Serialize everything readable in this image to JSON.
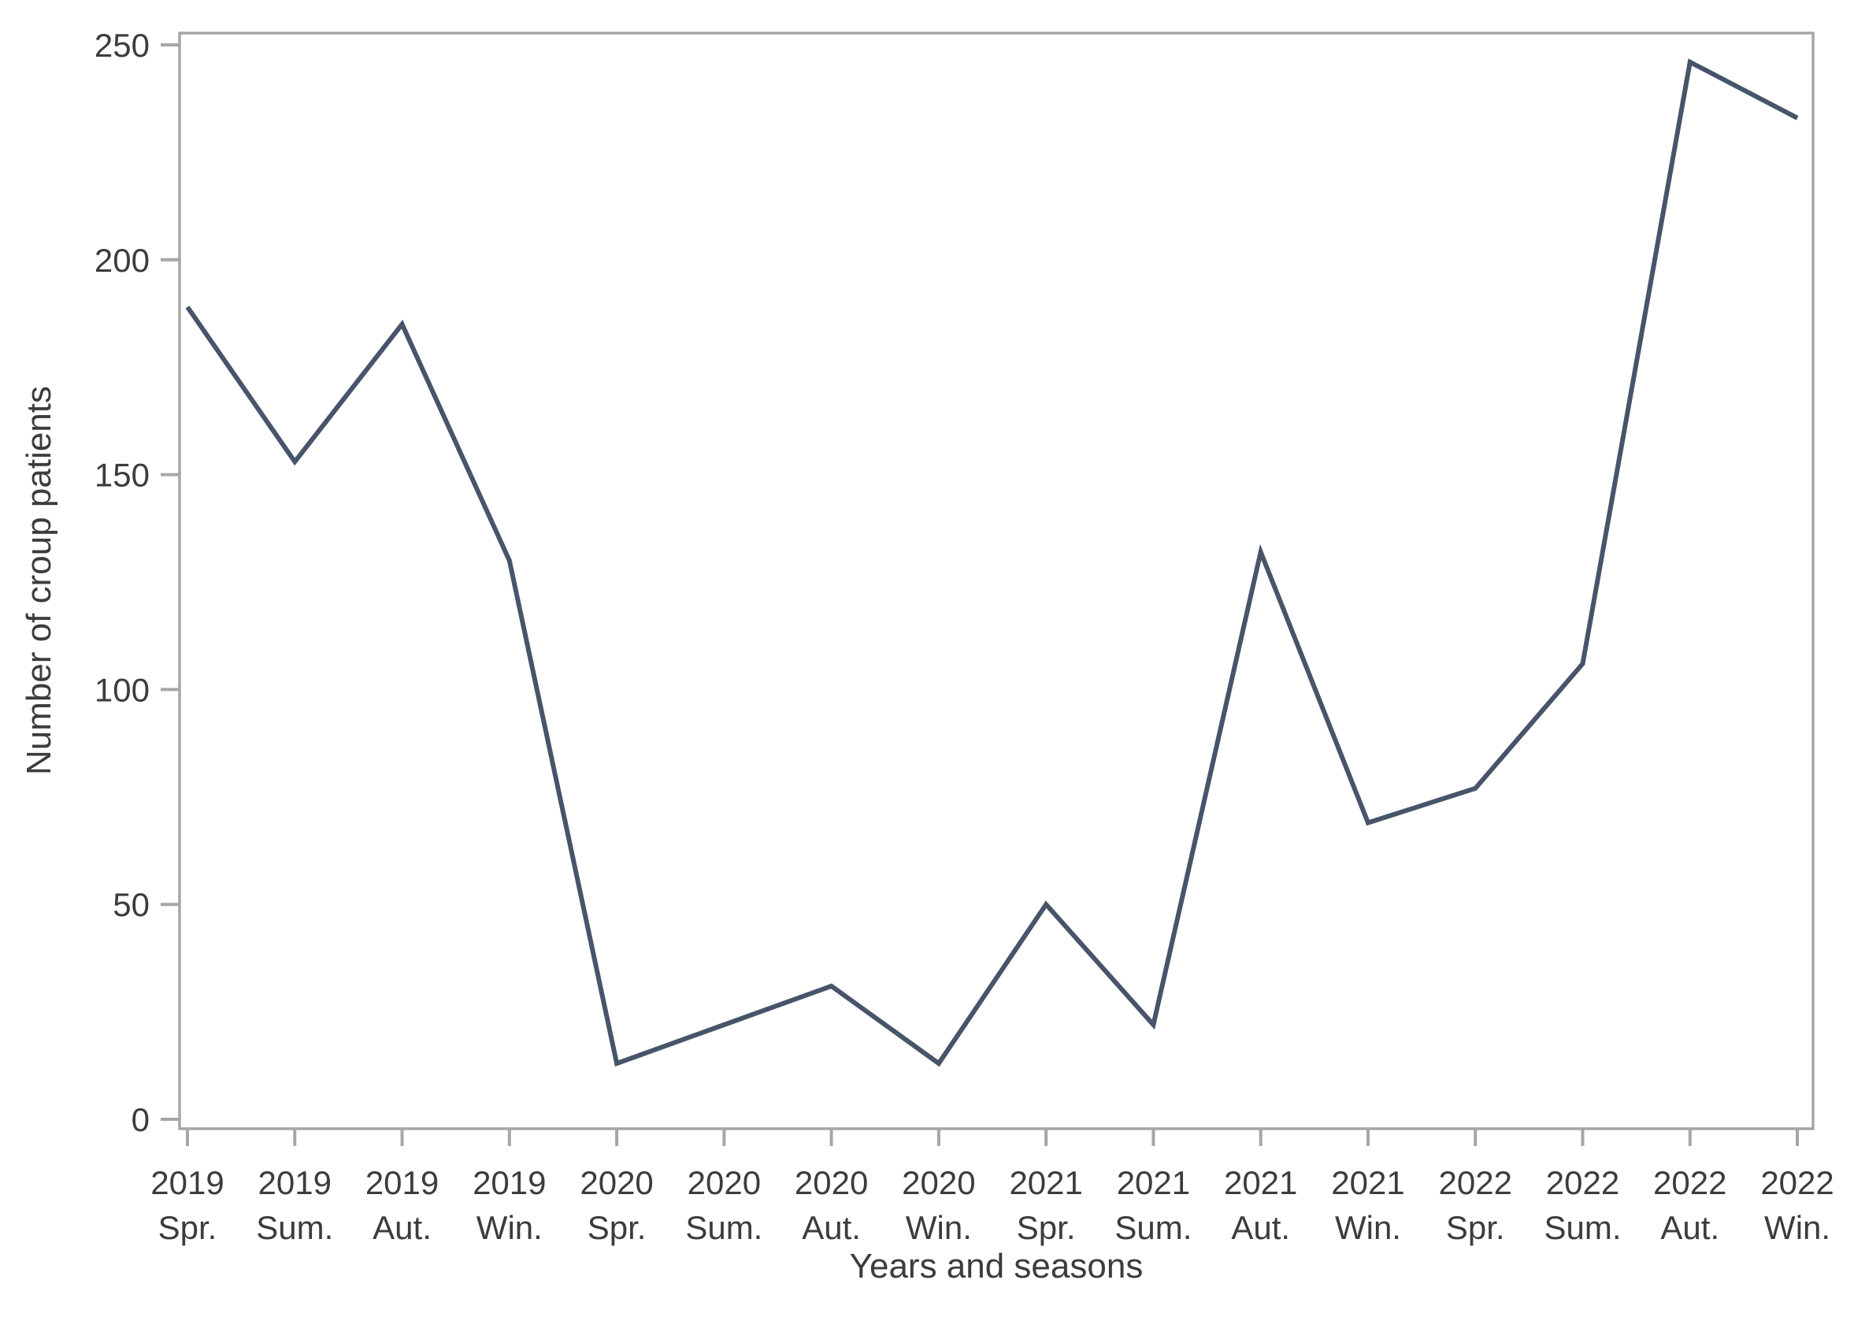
{
  "figure": {
    "background": "#ffffff"
  },
  "chart_data": {
    "type": "line",
    "title": "",
    "xlabel": "Years and seasons",
    "ylabel": "Number of croup patients",
    "categories": [
      "2019 Spr.",
      "2019 Sum.",
      "2019 Aut.",
      "2019 Win.",
      "2020 Spr.",
      "2020 Sum.",
      "2020 Aut.",
      "2020 Win.",
      "2021 Spr.",
      "2021 Sum.",
      "2021 Aut.",
      "2021 Win.",
      "2022 Spr.",
      "2022 Sum.",
      "2022 Aut.",
      "2022 Win."
    ],
    "values": [
      189,
      153,
      185,
      130,
      13,
      22,
      31,
      13,
      50,
      22,
      132,
      69,
      77,
      106,
      246,
      233
    ],
    "yticks": [
      0,
      50,
      100,
      150,
      200,
      250
    ],
    "ylim": [
      0,
      250
    ],
    "grid": false,
    "legend": "none",
    "colors": {
      "line": "#475469",
      "axis": "#a6a6a6",
      "text": "#3c3c3c"
    }
  }
}
